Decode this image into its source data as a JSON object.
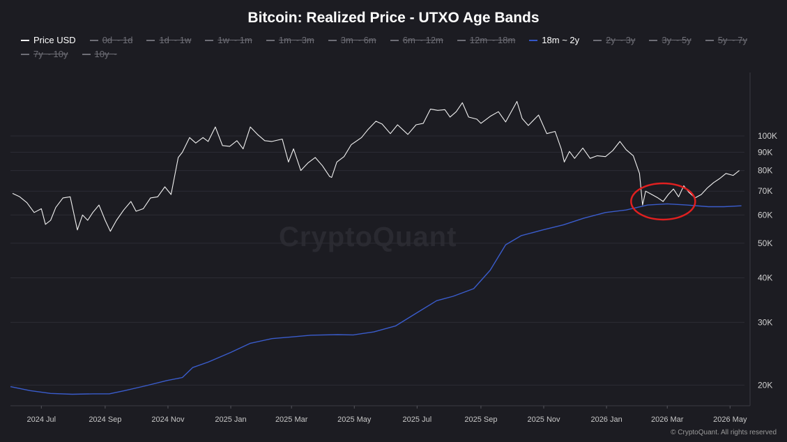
{
  "title": "Bitcoin: Realized Price - UTXO Age Bands",
  "watermark": "CryptoQuant",
  "copyright": "© CryptoQuant. All rights reserved",
  "legend": [
    {
      "label": "Price USD",
      "state": "visible",
      "color": "#ffffff"
    },
    {
      "label": "0d ~ 1d",
      "state": "hidden"
    },
    {
      "label": "1d ~ 1w",
      "state": "hidden"
    },
    {
      "label": "1w ~ 1m",
      "state": "hidden"
    },
    {
      "label": "1m ~ 3m",
      "state": "hidden"
    },
    {
      "label": "3m ~ 6m",
      "state": "hidden"
    },
    {
      "label": "6m ~ 12m",
      "state": "hidden"
    },
    {
      "label": "12m ~ 18m",
      "state": "hidden"
    },
    {
      "label": "18m ~ 2y",
      "state": "visible",
      "color": "#3557c8"
    },
    {
      "label": "2y ~ 3y",
      "state": "hidden"
    },
    {
      "label": "3y ~ 5y",
      "state": "hidden"
    },
    {
      "label": "5y ~ 7y",
      "state": "hidden"
    },
    {
      "label": "7y ~ 10y",
      "state": "hidden"
    },
    {
      "label": "10y ~",
      "state": "hidden"
    }
  ],
  "chart_data": {
    "type": "line",
    "y_scale": "log",
    "ylim": [
      17500,
      150000
    ],
    "xlim": [
      "2024-06-01",
      "2026-05-15"
    ],
    "y_ticks": [
      {
        "value": 20000,
        "label": "20K"
      },
      {
        "value": 30000,
        "label": "30K"
      },
      {
        "value": 40000,
        "label": "40K"
      },
      {
        "value": 50000,
        "label": "50K"
      },
      {
        "value": 60000,
        "label": "60K"
      },
      {
        "value": 70000,
        "label": "70K"
      },
      {
        "value": 80000,
        "label": "80K"
      },
      {
        "value": 90000,
        "label": "90K"
      },
      {
        "value": 100000,
        "label": "100K"
      }
    ],
    "x_ticks": [
      {
        "date": "2024-07-01",
        "label": "2024 Jul"
      },
      {
        "date": "2024-09-01",
        "label": "2024 Sep"
      },
      {
        "date": "2024-11-01",
        "label": "2024 Nov"
      },
      {
        "date": "2025-01-01",
        "label": "2025 Jan"
      },
      {
        "date": "2025-03-01",
        "label": "2025 Mar"
      },
      {
        "date": "2025-05-01",
        "label": "2025 May"
      },
      {
        "date": "2025-07-01",
        "label": "2025 Jul"
      },
      {
        "date": "2025-09-01",
        "label": "2025 Sep"
      },
      {
        "date": "2025-11-01",
        "label": "2025 Nov"
      },
      {
        "date": "2026-01-01",
        "label": "2026 Jan"
      },
      {
        "date": "2026-03-01",
        "label": "2026 Mar"
      },
      {
        "date": "2026-05-01",
        "label": "2026 May"
      }
    ],
    "series": [
      {
        "name": "Price USD",
        "color": "#f2f2f2",
        "points": [
          [
            "2024-06-03",
            69000
          ],
          [
            "2024-06-10",
            67500
          ],
          [
            "2024-06-17",
            65000
          ],
          [
            "2024-06-24",
            61000
          ],
          [
            "2024-07-01",
            62500
          ],
          [
            "2024-07-05",
            56500
          ],
          [
            "2024-07-10",
            58000
          ],
          [
            "2024-07-15",
            63000
          ],
          [
            "2024-07-22",
            67000
          ],
          [
            "2024-07-29",
            67500
          ],
          [
            "2024-08-05",
            54500
          ],
          [
            "2024-08-10",
            60000
          ],
          [
            "2024-08-15",
            58000
          ],
          [
            "2024-08-20",
            61000
          ],
          [
            "2024-08-26",
            64000
          ],
          [
            "2024-09-01",
            58000
          ],
          [
            "2024-09-06",
            54000
          ],
          [
            "2024-09-12",
            58000
          ],
          [
            "2024-09-19",
            62000
          ],
          [
            "2024-09-26",
            65500
          ],
          [
            "2024-10-01",
            61500
          ],
          [
            "2024-10-08",
            62500
          ],
          [
            "2024-10-15",
            67000
          ],
          [
            "2024-10-22",
            67500
          ],
          [
            "2024-10-29",
            72000
          ],
          [
            "2024-11-04",
            68500
          ],
          [
            "2024-11-11",
            87000
          ],
          [
            "2024-11-15",
            90000
          ],
          [
            "2024-11-22",
            99000
          ],
          [
            "2024-11-28",
            95500
          ],
          [
            "2024-12-05",
            99000
          ],
          [
            "2024-12-10",
            96500
          ],
          [
            "2024-12-17",
            106000
          ],
          [
            "2024-12-24",
            94000
          ],
          [
            "2024-12-31",
            93500
          ],
          [
            "2025-01-07",
            97000
          ],
          [
            "2025-01-13",
            92000
          ],
          [
            "2025-01-20",
            106000
          ],
          [
            "2025-01-27",
            101000
          ],
          [
            "2025-02-03",
            97000
          ],
          [
            "2025-02-10",
            96500
          ],
          [
            "2025-02-20",
            98000
          ],
          [
            "2025-02-26",
            84500
          ],
          [
            "2025-03-03",
            92000
          ],
          [
            "2025-03-10",
            80000
          ],
          [
            "2025-03-17",
            84000
          ],
          [
            "2025-03-24",
            87000
          ],
          [
            "2025-03-31",
            82500
          ],
          [
            "2025-04-07",
            77000
          ],
          [
            "2025-04-09",
            76500
          ],
          [
            "2025-04-14",
            84500
          ],
          [
            "2025-04-21",
            87500
          ],
          [
            "2025-04-28",
            94500
          ],
          [
            "2025-05-08",
            99000
          ],
          [
            "2025-05-14",
            104000
          ],
          [
            "2025-05-22",
            110000
          ],
          [
            "2025-05-28",
            108000
          ],
          [
            "2025-06-05",
            101500
          ],
          [
            "2025-06-12",
            107500
          ],
          [
            "2025-06-22",
            101000
          ],
          [
            "2025-06-30",
            107500
          ],
          [
            "2025-07-07",
            108500
          ],
          [
            "2025-07-14",
            119000
          ],
          [
            "2025-07-21",
            118000
          ],
          [
            "2025-07-28",
            118500
          ],
          [
            "2025-08-02",
            113000
          ],
          [
            "2025-08-08",
            117000
          ],
          [
            "2025-08-14",
            124000
          ],
          [
            "2025-08-20",
            113000
          ],
          [
            "2025-08-28",
            111500
          ],
          [
            "2025-09-01",
            108500
          ],
          [
            "2025-09-10",
            113500
          ],
          [
            "2025-09-18",
            117000
          ],
          [
            "2025-09-25",
            109500
          ],
          [
            "2025-10-06",
            125000
          ],
          [
            "2025-10-11",
            112000
          ],
          [
            "2025-10-17",
            107000
          ],
          [
            "2025-10-27",
            114500
          ],
          [
            "2025-11-04",
            101500
          ],
          [
            "2025-11-12",
            103000
          ],
          [
            "2025-11-18",
            92000
          ],
          [
            "2025-11-21",
            84500
          ],
          [
            "2025-11-26",
            90500
          ],
          [
            "2025-12-01",
            86500
          ],
          [
            "2025-12-09",
            92500
          ],
          [
            "2025-12-16",
            86500
          ],
          [
            "2025-12-23",
            88000
          ],
          [
            "2025-12-31",
            87500
          ],
          [
            "2026-01-07",
            91000
          ],
          [
            "2026-01-14",
            96500
          ],
          [
            "2026-01-20",
            91500
          ],
          [
            "2026-01-27",
            88000
          ],
          [
            "2026-02-02",
            78500
          ],
          [
            "2026-02-05",
            64000
          ],
          [
            "2026-02-08",
            70000
          ],
          [
            "2026-02-14",
            68500
          ],
          [
            "2026-02-20",
            67000
          ],
          [
            "2026-02-25",
            65500
          ],
          [
            "2026-03-02",
            68500
          ],
          [
            "2026-03-07",
            71000
          ],
          [
            "2026-03-12",
            67500
          ],
          [
            "2026-03-17",
            72500
          ],
          [
            "2026-03-22",
            69500
          ],
          [
            "2026-03-28",
            67000
          ],
          [
            "2026-04-03",
            68500
          ],
          [
            "2026-04-09",
            71500
          ],
          [
            "2026-04-15",
            74000
          ],
          [
            "2026-04-21",
            76000
          ],
          [
            "2026-04-27",
            78500
          ],
          [
            "2026-05-04",
            77500
          ],
          [
            "2026-05-10",
            80000
          ]
        ]
      },
      {
        "name": "18m ~ 2y",
        "color": "#3a5ccc",
        "points": [
          [
            "2024-06-01",
            19800
          ],
          [
            "2024-06-20",
            19300
          ],
          [
            "2024-07-10",
            18950
          ],
          [
            "2024-07-31",
            18850
          ],
          [
            "2024-08-20",
            18900
          ],
          [
            "2024-09-05",
            18900
          ],
          [
            "2024-09-20",
            19300
          ],
          [
            "2024-10-10",
            19900
          ],
          [
            "2024-10-31",
            20600
          ],
          [
            "2024-11-15",
            21000
          ],
          [
            "2024-11-25",
            22400
          ],
          [
            "2024-12-10",
            23200
          ],
          [
            "2025-01-01",
            24700
          ],
          [
            "2025-01-20",
            26200
          ],
          [
            "2025-02-10",
            27000
          ],
          [
            "2025-03-01",
            27300
          ],
          [
            "2025-03-20",
            27600
          ],
          [
            "2025-04-15",
            27700
          ],
          [
            "2025-04-30",
            27650
          ],
          [
            "2025-05-20",
            28200
          ],
          [
            "2025-06-10",
            29300
          ],
          [
            "2025-06-30",
            31800
          ],
          [
            "2025-07-20",
            34500
          ],
          [
            "2025-08-05",
            35500
          ],
          [
            "2025-08-25",
            37300
          ],
          [
            "2025-09-10",
            42000
          ],
          [
            "2025-09-25",
            49500
          ],
          [
            "2025-10-10",
            52500
          ],
          [
            "2025-10-31",
            54500
          ],
          [
            "2025-11-20",
            56300
          ],
          [
            "2025-12-10",
            58800
          ],
          [
            "2025-12-31",
            61000
          ],
          [
            "2026-01-20",
            62000
          ],
          [
            "2026-02-10",
            64000
          ],
          [
            "2026-03-01",
            64500
          ],
          [
            "2026-03-20",
            64000
          ],
          [
            "2026-04-10",
            63300
          ],
          [
            "2026-04-25",
            63300
          ],
          [
            "2026-05-12",
            63700
          ]
        ]
      }
    ],
    "annotation": {
      "shape": "ellipse",
      "color": "#e02020",
      "center": [
        "2026-02-25",
        65500
      ]
    }
  }
}
